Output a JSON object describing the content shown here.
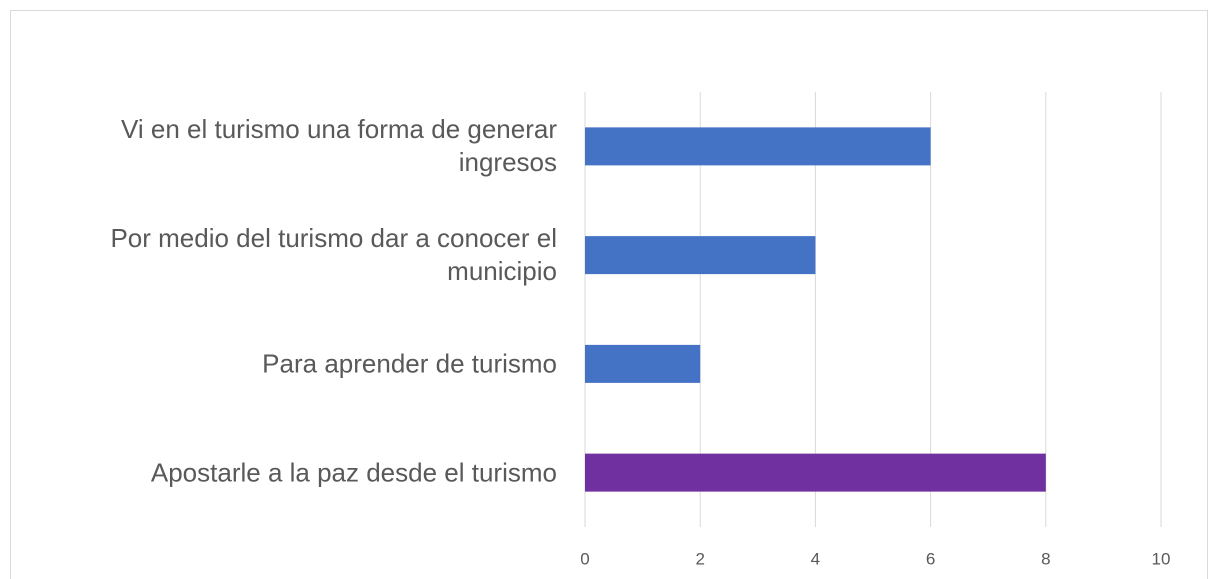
{
  "chart_data": {
    "type": "barh",
    "categories": [
      "Vi en el turismo una forma de generar ingresos",
      "Por medio del turismo dar a conocer el municipio",
      "Para aprender de turismo",
      "Apostarle a la paz desde el turismo"
    ],
    "values": [
      6,
      4,
      2,
      8
    ],
    "colors": [
      "#4472c4",
      "#4472c4",
      "#4472c4",
      "#7030a0"
    ],
    "xlim": [
      0,
      10
    ],
    "xticks": [
      0,
      2,
      4,
      6,
      8,
      10
    ],
    "grid": true
  }
}
